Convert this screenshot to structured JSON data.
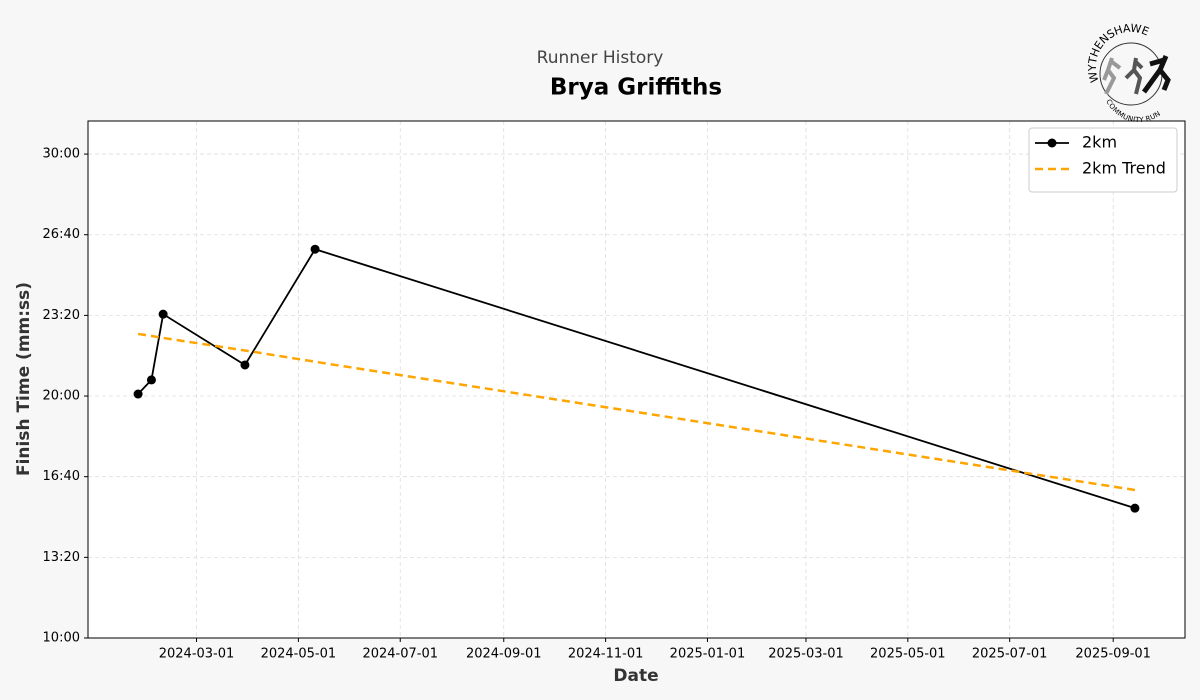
{
  "chart_data": {
    "type": "line",
    "subtitle": "Runner History",
    "title": "Brya Griffiths",
    "x_label": "Date",
    "y_label": "Finish Time (mm:ss)",
    "x": [
      "2024-01-26",
      "2024-02-03",
      "2024-02-10",
      "2024-03-30",
      "2024-05-11",
      "2025-09-14"
    ],
    "series": [
      {
        "name": "2km",
        "color": "#000000",
        "marker": "circle",
        "dashed": false,
        "values": [
          1205,
          1240,
          1403,
          1277,
          1564,
          922
        ]
      },
      {
        "name": "2km Trend",
        "color": "#ffa500",
        "marker": "none",
        "dashed": true,
        "values": [
          1354,
          1349,
          1344,
          1313,
          1285,
          967
        ]
      }
    ],
    "xlim": [
      "2023-12-27",
      "2025-10-14"
    ],
    "xticks": [
      "2024-03-01",
      "2024-05-01",
      "2024-07-01",
      "2024-09-01",
      "2024-11-01",
      "2025-01-01",
      "2025-03-01",
      "2025-05-01",
      "2025-07-01",
      "2025-09-01"
    ],
    "ylim": [
      600,
      1882
    ],
    "yticks": [
      {
        "value": 600,
        "label": "10:00"
      },
      {
        "value": 800,
        "label": "13:20"
      },
      {
        "value": 1000,
        "label": "16:40"
      },
      {
        "value": 1200,
        "label": "20:00"
      },
      {
        "value": 1400,
        "label": "23:20"
      },
      {
        "value": 1600,
        "label": "26:40"
      },
      {
        "value": 1800,
        "label": "30:00"
      }
    ],
    "grid": true,
    "legend": "upper right"
  },
  "logo": {
    "top_text": "WYTHENSHAWE",
    "bottom_text": "COMMUNITY RUN"
  }
}
